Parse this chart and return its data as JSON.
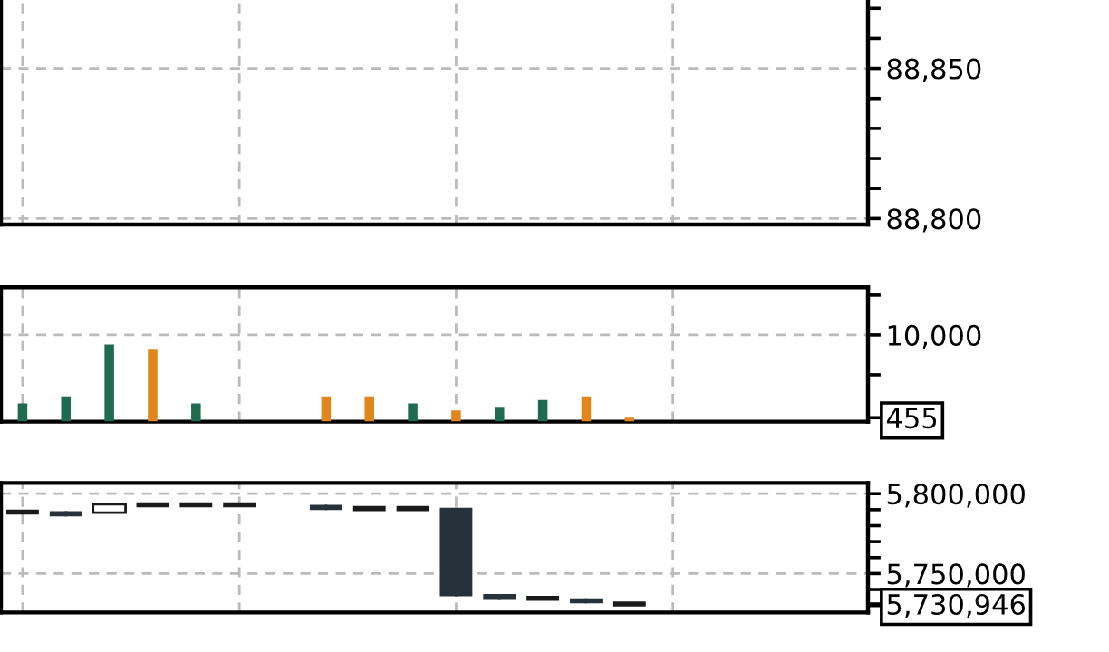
{
  "chart_data": [
    {
      "type": "line",
      "categories": [
        null,
        null,
        null,
        null,
        null,
        null,
        null,
        null,
        null,
        null,
        null,
        null,
        null,
        null,
        null,
        null,
        null,
        null,
        null,
        null
      ],
      "ylim": [
        88798,
        88874
      ],
      "yticks": [
        {
          "value": 88800,
          "label": "88,800"
        },
        {
          "value": 88810,
          "label": null
        },
        {
          "value": 88820,
          "label": null
        },
        {
          "value": 88830,
          "label": null
        },
        {
          "value": 88840,
          "label": null
        },
        {
          "value": 88850,
          "label": "88,850"
        },
        {
          "value": 88860,
          "label": null
        },
        {
          "value": 88870,
          "label": null
        }
      ],
      "grid": true,
      "tick_labels": "y"
    },
    {
      "type": "bar",
      "categories": [
        null,
        null,
        null,
        null,
        null,
        null,
        null,
        null,
        null,
        null,
        null,
        null,
        null,
        null,
        null,
        null,
        null,
        null,
        null,
        null
      ],
      "values": [
        2100,
        2900,
        8900,
        8400,
        2100,
        0,
        0,
        2900,
        2900,
        2100,
        1300,
        1700,
        2500,
        2900,
        455,
        null,
        null,
        null,
        null,
        null
      ],
      "colors": [
        "#1f6b4f",
        "#1f6b4f",
        "#1f6b4f",
        "#e0861c",
        "#1f6b4f",
        null,
        null,
        "#e0861c",
        "#e0861c",
        "#1f6b4f",
        "#e0861c",
        "#1f6b4f",
        "#1f6b4f",
        "#e0861c",
        "#e0861c",
        null,
        null,
        null,
        null,
        null
      ],
      "ylim": [
        0,
        15510
      ],
      "yticks": [
        {
          "value": 455,
          "label": "455"
        },
        {
          "value": 5400,
          "label": null
        },
        {
          "value": 10000,
          "label": "10,000"
        },
        {
          "value": 14600,
          "label": null
        }
      ],
      "grid": true,
      "tick_labels": "y"
    },
    {
      "type": "candlestick",
      "categories": [
        null,
        null,
        null,
        null,
        null,
        null,
        null,
        null,
        null,
        null,
        null,
        null,
        null,
        null,
        null,
        null,
        null,
        null,
        null,
        null
      ],
      "ohlc": [
        [
          5788500,
          5788500,
          5788500,
          5788500
        ],
        [
          5789000,
          5789000,
          5785800,
          5785800
        ],
        [
          5788100,
          5793400,
          5788100,
          5793400
        ],
        [
          5793000,
          5793000,
          5793000,
          5793000
        ],
        [
          5793000,
          5793000,
          5793000,
          5793000
        ],
        [
          5793000,
          5793000,
          5793000,
          5793000
        ],
        null,
        [
          5793000,
          5793000,
          5789800,
          5789800
        ],
        [
          5790700,
          5790700,
          5790700,
          5790700
        ],
        [
          5790700,
          5790700,
          5790700,
          5790700
        ],
        [
          5791200,
          5791200,
          5735800,
          5735800
        ],
        [
          5737200,
          5737200,
          5733500,
          5733500
        ],
        [
          5734500,
          5734500,
          5734500,
          5734500
        ],
        [
          5734500,
          5734500,
          5731400,
          5731400
        ],
        [
          5730946,
          5730946,
          5730946,
          5730946
        ],
        null,
        null,
        null,
        null,
        null
      ],
      "ylim": [
        5725620,
        5806700
      ],
      "yticks": [
        {
          "value": 5730946,
          "label": "5,730,946"
        },
        {
          "value": 5730000,
          "label": null
        },
        {
          "value": 5740000,
          "label": null
        },
        {
          "value": 5750000,
          "label": "5,750,000"
        },
        {
          "value": 5760000,
          "label": null
        },
        {
          "value": 5770000,
          "label": null
        },
        {
          "value": 5780000,
          "label": null
        },
        {
          "value": 5790000,
          "label": null
        },
        {
          "value": 5800000,
          "label": "5,800,000"
        }
      ],
      "grid": true,
      "tick_labels": "y"
    }
  ]
}
